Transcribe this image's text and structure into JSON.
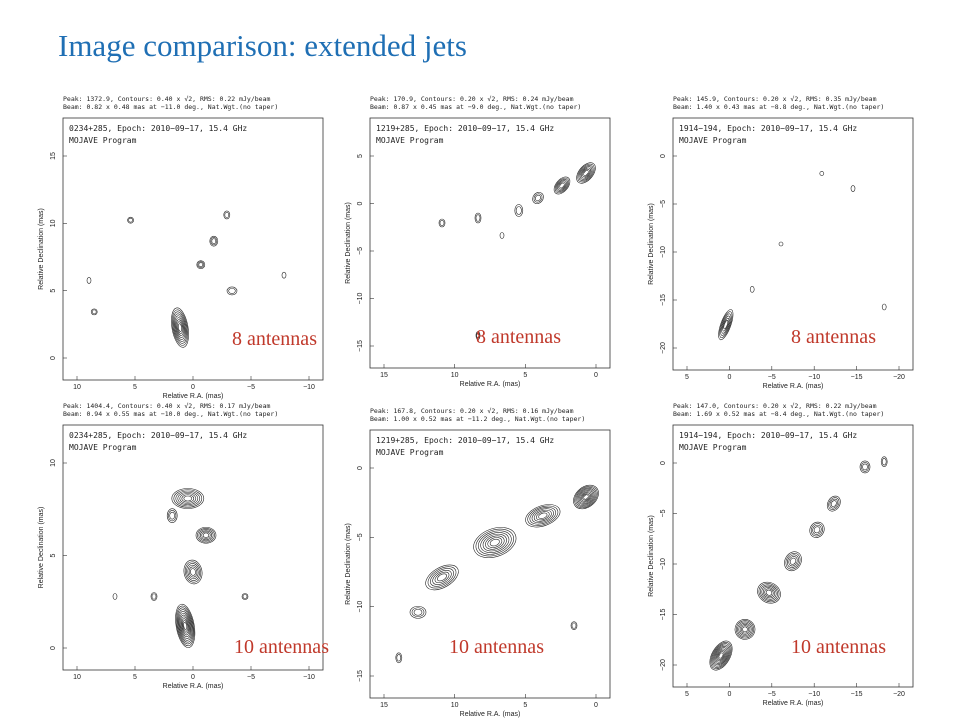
{
  "title": "Image comparison: extended jets",
  "panels": [
    {
      "header": [
        "Peak: 1372.9, Contours: 0.40 x √2, RMS: 0.22 mJy/beam",
        "Beam: 0.82 x 0.48 mas at −11.0 deg., Nat.Wgt.(no taper)"
      ],
      "source": "0234+285, Epoch: 2010−09−17, 15.4 GHz",
      "program": "MOJAVE Program",
      "ylabel": "Relative Declination (mas)",
      "xlabel": "Relative R.A. (mas)",
      "xticks": [
        "10",
        "5",
        "0",
        "−5",
        "−10"
      ],
      "yticks": [
        "0",
        "5",
        "10",
        "15"
      ],
      "caption": "8 antennas"
    },
    {
      "header": [
        "Peak: 170.9, Contours: 0.20 x √2, RMS: 0.24 mJy/beam",
        "Beam: 0.87 x 0.45 mas at −9.0 deg., Nat.Wgt.(no taper)"
      ],
      "source": "1219+285, Epoch: 2010−09−17, 15.4 GHz",
      "program": "MOJAVE Program",
      "ylabel": "Relative Declination (mas)",
      "xlabel": "Relative R.A. (mas)",
      "xticks": [
        "15",
        "10",
        "5",
        "0"
      ],
      "yticks": [
        "−15",
        "−10",
        "−5",
        "0",
        "5"
      ],
      "caption": "8 antennas"
    },
    {
      "header": [
        "Peak: 145.9, Contours: 0.20 x √2, RMS: 0.35 mJy/beam",
        "Beam: 1.40 x 0.43 mas at −8.8 deg., Nat.Wgt.(no taper)"
      ],
      "source": "1914−194, Epoch: 2010−09−17, 15.4 GHz",
      "program": "MOJAVE Program",
      "ylabel": "Relative Declination (mas)",
      "xlabel": "Relative R.A. (mas)",
      "xticks": [
        "5",
        "0",
        "−5",
        "−10",
        "−15",
        "−20"
      ],
      "yticks": [
        "−20",
        "−15",
        "−10",
        "−5",
        "0"
      ],
      "caption": "8 antennas"
    },
    {
      "header": [
        "Peak: 1404.4, Contours: 0.40 x √2, RMS: 0.17 mJy/beam",
        "Beam: 0.94 x 0.55 mas at −10.0 deg., Nat.Wgt.(no taper)"
      ],
      "source": "0234+285, Epoch: 2010−09−17, 15.4 GHz",
      "program": "MOJAVE Program",
      "ylabel": "Relative Declination (mas)",
      "xlabel": "Relative R.A. (mas)",
      "xticks": [
        "10",
        "5",
        "0",
        "−5",
        "−10"
      ],
      "yticks": [
        "0",
        "5",
        "10"
      ],
      "caption": "10 antennas"
    },
    {
      "header": [
        "Peak: 167.8, Contours: 0.20 x √2, RMS: 0.16 mJy/beam",
        "Beam: 1.00 x 0.52 mas at −11.2 deg., Nat.Wgt.(no taper)"
      ],
      "source": "1219+285, Epoch: 2010−09−17, 15.4 GHz",
      "program": "MOJAVE Program",
      "ylabel": "Relative Declination (mas)",
      "xlabel": "Relative R.A. (mas)",
      "xticks": [
        "15",
        "10",
        "5",
        "0"
      ],
      "yticks": [
        "−15",
        "−10",
        "−5",
        "0"
      ],
      "caption": "10 antennas"
    },
    {
      "header": [
        "Peak: 147.0, Contours: 0.20 x √2, RMS: 0.22 mJy/beam",
        "Beam: 1.69 x 0.52 mas at −8.4 deg., Nat.Wgt.(no taper)"
      ],
      "source": "1914−194, Epoch: 2010−09−17, 15.4 GHz",
      "program": "MOJAVE Program",
      "ylabel": "Relative Declination (mas)",
      "xlabel": "Relative R.A. (mas)",
      "xticks": [
        "5",
        "0",
        "−5",
        "−10",
        "−15",
        "−20"
      ],
      "yticks": [
        "−20",
        "−15",
        "−10",
        "−5",
        "0"
      ],
      "caption": "10 antennas"
    }
  ]
}
